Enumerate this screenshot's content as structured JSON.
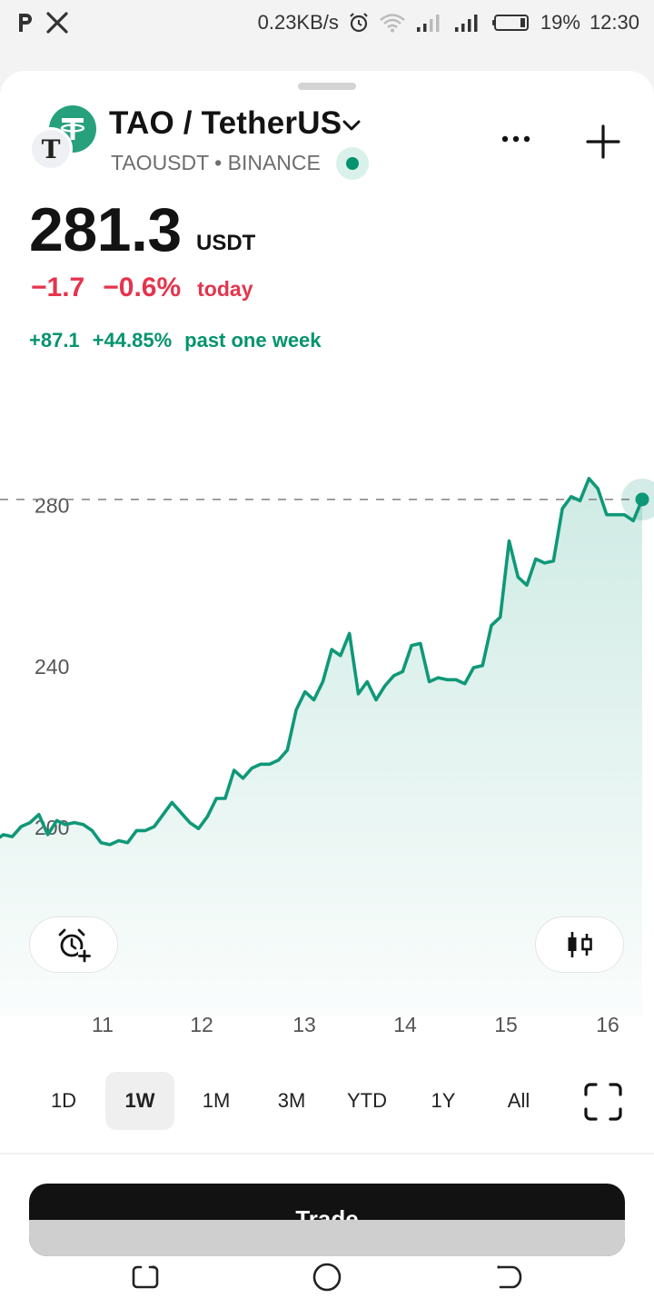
{
  "status_bar": {
    "left_icons": [
      "p-app-icon",
      "x-app-icon"
    ],
    "speed": "0.23KB/s",
    "battery": "19%",
    "time": "12:30"
  },
  "header": {
    "pair_title": "TAO / TetherUS",
    "symbol_line": "TAOUSDT • BINANCE",
    "quote_icon_letter": "T",
    "live": true
  },
  "price": {
    "value": "281.3",
    "unit": "USDT",
    "change_abs": "−1.7",
    "change_pct": "−0.6%",
    "change_label": "today",
    "week_abs": "+87.1",
    "week_pct": "+44.85%",
    "week_label": "past one week"
  },
  "colors": {
    "up": "#05936f",
    "down": "#e5344d",
    "line": "#0f9878",
    "tether": "#26a17b"
  },
  "chart_data": {
    "type": "area",
    "title": "",
    "xlabel": "",
    "ylabel": "",
    "x_ticks": [
      "11",
      "12",
      "13",
      "14",
      "15",
      "16"
    ],
    "y_ticks": [
      "280",
      "240",
      "200"
    ],
    "ylim": [
      170,
      295
    ],
    "last_price_line": 281.3,
    "series": [
      {
        "values": [
          196.5,
          198,
          197.5,
          200,
          201,
          203,
          198,
          201.5,
          200.5,
          201,
          200.5,
          199,
          196,
          195.5,
          196.5,
          196,
          199,
          199,
          200,
          203,
          206,
          203.5,
          201,
          199.5,
          202.5,
          207,
          207,
          214,
          212,
          214.5,
          215.5,
          215.5,
          216.5,
          219,
          229,
          233.5,
          231.5,
          236,
          244,
          242.5,
          248,
          233,
          236,
          231.5,
          235,
          237.5,
          238.5,
          245,
          245.5,
          236,
          237,
          236.5,
          236.5,
          235.5,
          239.5,
          240,
          250,
          252,
          271,
          262,
          260,
          266.5,
          265.5,
          266,
          279,
          282,
          281,
          286.5,
          284,
          277.5,
          277.5,
          277.5,
          276,
          281.3
        ]
      }
    ]
  },
  "ranges": {
    "items": [
      "1D",
      "1W",
      "1M",
      "3M",
      "YTD",
      "1Y",
      "All"
    ],
    "active": "1W"
  },
  "trade": {
    "label": "Trade"
  }
}
